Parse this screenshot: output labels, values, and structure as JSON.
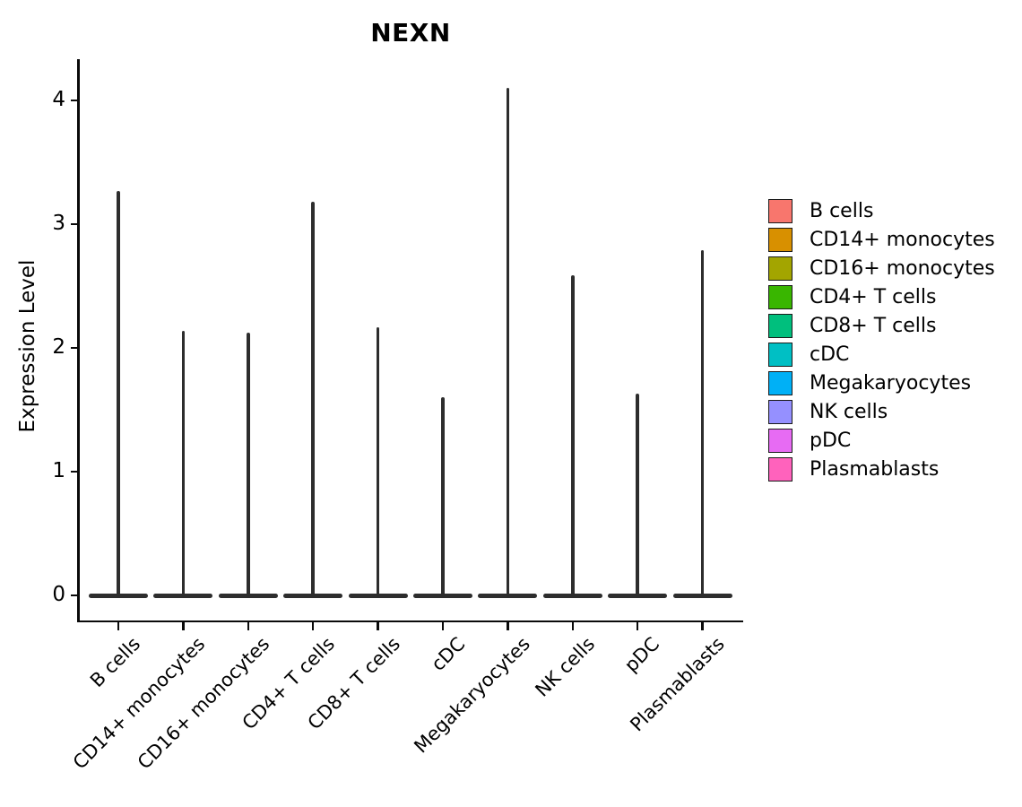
{
  "chart_data": {
    "type": "violin",
    "title": "NEXN",
    "xlabel": "",
    "ylabel": "Expression Level",
    "categories": [
      "B cells",
      "CD14+ monocytes",
      "CD16+ monocytes",
      "CD4+ T cells",
      "CD8+ T cells",
      "cDC",
      "Megakaryocytes",
      "NK cells",
      "pDC",
      "Plasmablasts"
    ],
    "max_expression_values": [
      3.27,
      2.14,
      2.12,
      3.18,
      2.17,
      1.6,
      4.1,
      2.59,
      1.63,
      2.79
    ],
    "min_expression_value": 0,
    "violin_shape_note": "each violin collapses to a thin vertical spike from 0 to max with a wide flat base at 0",
    "yticks": [
      0,
      1,
      2,
      3,
      4
    ],
    "ylim": [
      0,
      4.35
    ],
    "grid": false,
    "violin_outline_color": "#2d2d2d",
    "legend": {
      "position": "right",
      "entries": [
        {
          "label": "B cells",
          "color": "#F8766D"
        },
        {
          "label": "CD14+ monocytes",
          "color": "#D89000"
        },
        {
          "label": "CD16+ monocytes",
          "color": "#A3A500"
        },
        {
          "label": "CD4+ T cells",
          "color": "#39B600"
        },
        {
          "label": "CD8+ T cells",
          "color": "#00BF7D"
        },
        {
          "label": "cDC",
          "color": "#00BFC4"
        },
        {
          "label": "Megakaryocytes",
          "color": "#00B0F6"
        },
        {
          "label": "NK cells",
          "color": "#9590FF"
        },
        {
          "label": "pDC",
          "color": "#E76BF3"
        },
        {
          "label": "Plasmablasts",
          "color": "#FF62BC"
        }
      ]
    }
  }
}
